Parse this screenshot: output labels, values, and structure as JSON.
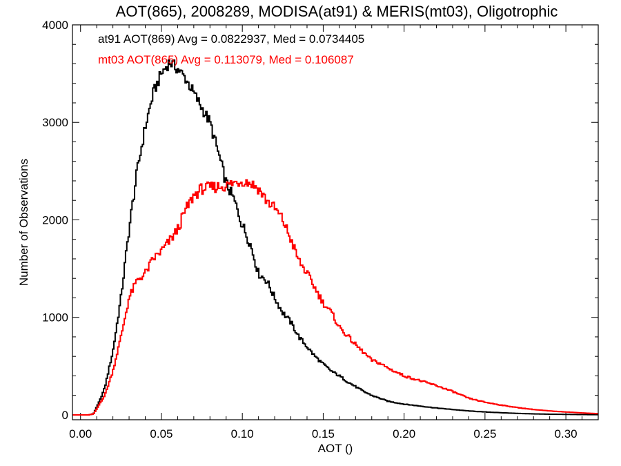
{
  "chart_data": {
    "type": "line",
    "step": true,
    "title": "AOT(865), 2008289, MODISA(at91) & MERIS(mt03), Oligotrophic",
    "xlabel": "AOT ()",
    "ylabel": "Number of Observations",
    "xlim": [
      -0.005,
      0.32
    ],
    "ylim": [
      -50,
      4000
    ],
    "x_ticks": [
      0.0,
      0.05,
      0.1,
      0.15,
      0.2,
      0.25,
      0.3
    ],
    "x_tick_labels": [
      "0.00",
      "0.05",
      "0.10",
      "0.15",
      "0.20",
      "0.25",
      "0.30"
    ],
    "y_ticks": [
      0,
      1000,
      2000,
      3000,
      4000
    ],
    "y_tick_labels": [
      "0",
      "1000",
      "2000",
      "3000",
      "4000"
    ],
    "grid": false,
    "annotations": [
      {
        "text": "at91 AOT(869) Avg = 0.0822937, Med = 0.0734405",
        "color": "#000000"
      },
      {
        "text": "mt03 AOT(865) Avg = 0.113079, Med = 0.106087",
        "color": "#ff0000"
      }
    ],
    "series": [
      {
        "color": "#000000",
        "x": [
          -0.005,
          0.005,
          0.008,
          0.01,
          0.012,
          0.015,
          0.02,
          0.025,
          0.03,
          0.035,
          0.04,
          0.045,
          0.05,
          0.055,
          0.06,
          0.065,
          0.07,
          0.075,
          0.08,
          0.085,
          0.09,
          0.095,
          0.1,
          0.105,
          0.11,
          0.115,
          0.12,
          0.125,
          0.13,
          0.135,
          0.14,
          0.145,
          0.15,
          0.155,
          0.16,
          0.165,
          0.17,
          0.175,
          0.18,
          0.185,
          0.19,
          0.2,
          0.21,
          0.22,
          0.23,
          0.24,
          0.25,
          0.26,
          0.27,
          0.28,
          0.29,
          0.3,
          0.31,
          0.32
        ],
        "values": [
          0,
          0,
          10,
          80,
          150,
          280,
          650,
          1200,
          1900,
          2500,
          2950,
          3300,
          3500,
          3620,
          3550,
          3450,
          3300,
          3150,
          3000,
          2700,
          2380,
          2200,
          1950,
          1750,
          1450,
          1380,
          1200,
          1050,
          950,
          800,
          700,
          600,
          520,
          450,
          400,
          340,
          290,
          240,
          200,
          170,
          140,
          110,
          90,
          70,
          55,
          40,
          30,
          22,
          15,
          10,
          7,
          5,
          3,
          2
        ]
      },
      {
        "color": "#ff0000",
        "x": [
          -0.005,
          0.005,
          0.008,
          0.01,
          0.012,
          0.015,
          0.02,
          0.025,
          0.03,
          0.035,
          0.04,
          0.045,
          0.05,
          0.055,
          0.06,
          0.065,
          0.07,
          0.075,
          0.08,
          0.085,
          0.09,
          0.095,
          0.1,
          0.105,
          0.11,
          0.115,
          0.12,
          0.125,
          0.13,
          0.135,
          0.14,
          0.145,
          0.15,
          0.155,
          0.16,
          0.165,
          0.17,
          0.175,
          0.18,
          0.185,
          0.19,
          0.195,
          0.2,
          0.21,
          0.22,
          0.23,
          0.24,
          0.25,
          0.26,
          0.27,
          0.28,
          0.29,
          0.3,
          0.31,
          0.32
        ],
        "values": [
          0,
          0,
          10,
          60,
          120,
          200,
          450,
          800,
          1200,
          1380,
          1450,
          1600,
          1680,
          1780,
          1900,
          2100,
          2250,
          2320,
          2330,
          2340,
          2350,
          2380,
          2400,
          2380,
          2320,
          2200,
          2120,
          2000,
          1800,
          1580,
          1450,
          1300,
          1150,
          1050,
          900,
          810,
          720,
          640,
          560,
          530,
          480,
          440,
          400,
          350,
          300,
          240,
          170,
          130,
          100,
          75,
          55,
          40,
          30,
          20,
          12
        ]
      }
    ]
  }
}
